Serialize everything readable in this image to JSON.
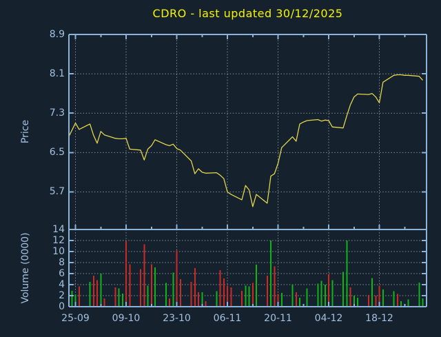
{
  "title": "CDRO - last updated 30/12/2025",
  "colors": {
    "background": "#16212E",
    "axis": "#8CB3D9",
    "tick_label": "#A3C2E0",
    "grid_dots": "#ABB3BB",
    "title_text": "#F5F500",
    "price_line": "#E2D64B",
    "volume_up": "#0FB419",
    "volume_down": "#CC2A26"
  },
  "chart_data": {
    "type": "line",
    "title": "CDRO - last updated 30/12/2025",
    "grid": true,
    "panels": [
      "price",
      "volume"
    ],
    "price_axis": {
      "label": "Price",
      "ticks": [
        8.9,
        8.1,
        7.3,
        6.5,
        5.7
      ],
      "tick_step": 0.8,
      "ylim_top": 8.9,
      "ylim_bottom": 4.94
    },
    "volume_axis": {
      "label": "Volume (0000)",
      "ticks": [
        14,
        12,
        10,
        8,
        6,
        4,
        2,
        0
      ],
      "tick_step": 2,
      "unit_multiplier": 10000,
      "ylim": [
        0,
        14
      ]
    },
    "x_axis": {
      "ticks": [
        {
          "label": "25-09",
          "off": 2
        },
        {
          "label": "09-10",
          "off": 16
        },
        {
          "label": "23-10",
          "off": 30
        },
        {
          "label": "06-11",
          "off": 44
        },
        {
          "label": "20-11",
          "off": 58
        },
        {
          "label": "04-12",
          "off": 72
        },
        {
          "label": "18-12",
          "off": 86
        }
      ],
      "minor_tick_offsets": [
        9,
        23,
        37,
        51,
        65,
        79,
        93
      ],
      "span_calendar_days": 98
    },
    "days_format": [
      "date_dd-mm",
      "calendar_day_offset",
      "close_price",
      "volume_x10000",
      "bar_color_g_green_r_red_empty_none"
    ],
    "days": [
      [
        "23-09",
        0,
        6.8,
        0,
        ""
      ],
      [
        "24-09",
        1,
        6.95,
        2.9,
        "g"
      ],
      [
        "25-09",
        2,
        7.1,
        2.2,
        "g"
      ],
      [
        "26-09",
        3,
        6.97,
        3.7,
        "r"
      ],
      [
        "29-09",
        6,
        7.08,
        4.5,
        "g"
      ],
      [
        "30-09",
        7,
        6.85,
        5.6,
        "r"
      ],
      [
        "01-10",
        8,
        6.69,
        4.8,
        "r"
      ],
      [
        "02-10",
        9,
        6.93,
        6.0,
        "g"
      ],
      [
        "03-10",
        10,
        6.86,
        1.5,
        "r"
      ],
      [
        "06-10",
        13,
        6.79,
        3.5,
        "r"
      ],
      [
        "07-10",
        14,
        6.78,
        3.3,
        "g"
      ],
      [
        "08-10",
        15,
        6.78,
        2.4,
        "g"
      ],
      [
        "09-10",
        16,
        6.79,
        11.9,
        "r"
      ],
      [
        "10-10",
        17,
        6.57,
        7.7,
        "r"
      ],
      [
        "13-10",
        20,
        6.55,
        6.8,
        "r"
      ],
      [
        "14-10",
        21,
        6.35,
        11.3,
        "r"
      ],
      [
        "15-10",
        22,
        6.57,
        3.8,
        "g"
      ],
      [
        "16-10",
        23,
        6.64,
        7.7,
        "r"
      ],
      [
        "17-10",
        24,
        6.76,
        7.1,
        "g"
      ],
      [
        "20-10",
        27,
        6.66,
        4.3,
        "g"
      ],
      [
        "21-10",
        28,
        6.64,
        1.5,
        "r"
      ],
      [
        "22-10",
        29,
        6.67,
        6.2,
        "g"
      ],
      [
        "23-10",
        30,
        6.58,
        10.2,
        "r"
      ],
      [
        "24-10",
        31,
        6.55,
        5.0,
        "r"
      ],
      [
        "27-10",
        34,
        6.33,
        4.5,
        "r"
      ],
      [
        "28-10",
        35,
        6.07,
        7.0,
        "r"
      ],
      [
        "29-10",
        36,
        6.17,
        2.6,
        "r"
      ],
      [
        "30-10",
        37,
        6.1,
        2.6,
        "g"
      ],
      [
        "31-10",
        38,
        6.08,
        1.0,
        "r"
      ],
      [
        "03-11",
        41,
        6.09,
        2.8,
        "g"
      ],
      [
        "04-11",
        42,
        6.04,
        6.6,
        "r"
      ],
      [
        "05-11",
        43,
        5.97,
        5.1,
        "r"
      ],
      [
        "06-11",
        44,
        5.7,
        3.8,
        "r"
      ],
      [
        "07-11",
        45,
        5.65,
        3.5,
        "r"
      ],
      [
        "10-11",
        48,
        5.54,
        2.9,
        "r"
      ],
      [
        "11-11",
        49,
        5.83,
        3.8,
        "g"
      ],
      [
        "12-11",
        50,
        5.74,
        3.7,
        "g"
      ],
      [
        "13-11",
        51,
        5.4,
        4.3,
        "r"
      ],
      [
        "14-11",
        52,
        5.65,
        7.6,
        "g"
      ],
      [
        "17-11",
        55,
        5.47,
        5.6,
        "r"
      ],
      [
        "18-11",
        56,
        6.02,
        12.0,
        "g"
      ],
      [
        "19-11",
        57,
        6.07,
        7.3,
        "r"
      ],
      [
        "20-11",
        58,
        6.28,
        2.3,
        "r"
      ],
      [
        "21-11",
        59,
        6.6,
        2.5,
        "g"
      ],
      [
        "24-11",
        62,
        6.82,
        4.0,
        "g"
      ],
      [
        "25-11",
        63,
        6.73,
        2.6,
        "r"
      ],
      [
        "26-11",
        64,
        7.08,
        1.6,
        "g"
      ],
      [
        "27-11",
        65,
        7.12,
        0,
        ""
      ],
      [
        "28-11",
        66,
        7.15,
        3.3,
        "g"
      ],
      [
        "01-12",
        69,
        7.17,
        4.2,
        "g"
      ],
      [
        "02-12",
        70,
        7.14,
        4.7,
        "g"
      ],
      [
        "03-12",
        71,
        7.16,
        4.0,
        "g"
      ],
      [
        "04-12",
        72,
        7.15,
        5.9,
        "r"
      ],
      [
        "05-12",
        73,
        7.02,
        4.8,
        "g"
      ],
      [
        "08-12",
        76,
        7.0,
        6.3,
        "g"
      ],
      [
        "09-12",
        77,
        7.25,
        12.0,
        "g"
      ],
      [
        "10-12",
        78,
        7.47,
        3.5,
        "r"
      ],
      [
        "11-12",
        79,
        7.63,
        2.0,
        "g"
      ],
      [
        "12-12",
        80,
        7.69,
        1.6,
        "g"
      ],
      [
        "15-12",
        83,
        7.68,
        2.1,
        "r"
      ],
      [
        "16-12",
        84,
        7.7,
        5.2,
        "g"
      ],
      [
        "17-12",
        85,
        7.63,
        2.0,
        "r"
      ],
      [
        "18-12",
        86,
        7.51,
        3.8,
        "r"
      ],
      [
        "19-12",
        87,
        7.93,
        3.1,
        "g"
      ],
      [
        "22-12",
        90,
        8.07,
        2.8,
        "g"
      ],
      [
        "23-12",
        91,
        8.08,
        2.3,
        "r"
      ],
      [
        "24-12",
        92,
        8.08,
        1.0,
        "g"
      ],
      [
        "25-12",
        93,
        8.07,
        0,
        ""
      ],
      [
        "26-12",
        94,
        8.07,
        1.3,
        "g"
      ],
      [
        "29-12",
        97,
        8.05,
        4.4,
        "g"
      ],
      [
        "30-12",
        98,
        7.97,
        1.5,
        "g"
      ]
    ]
  }
}
